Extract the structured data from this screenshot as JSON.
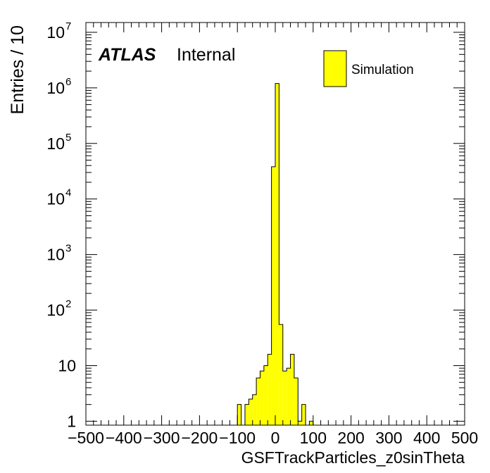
{
  "chart_data": {
    "type": "bar",
    "title": "",
    "xlabel": "GSFTrackParticles_z0sinTheta",
    "ylabel": "Entries / 10",
    "xlim": [
      -500,
      500
    ],
    "ylim": [
      0.85,
      15000000
    ],
    "yscale": "log",
    "bin_width": 10,
    "x_ticks": [
      "−500",
      "−400",
      "−300",
      "−200",
      "−100",
      "0",
      "100",
      "200",
      "300",
      "400",
      "500"
    ],
    "x_tick_values": [
      -500,
      -400,
      -300,
      -200,
      -100,
      0,
      100,
      200,
      300,
      400,
      500
    ],
    "y_ticks": [
      {
        "value": 1,
        "base": "1",
        "exp": ""
      },
      {
        "value": 10,
        "base": "10",
        "exp": ""
      },
      {
        "value": 100,
        "base": "10",
        "exp": "2"
      },
      {
        "value": 1000,
        "base": "10",
        "exp": "3"
      },
      {
        "value": 10000,
        "base": "10",
        "exp": "4"
      },
      {
        "value": 100000,
        "base": "10",
        "exp": "5"
      },
      {
        "value": 1000000,
        "base": "10",
        "exp": "6"
      },
      {
        "value": 10000000,
        "base": "10",
        "exp": "7"
      }
    ],
    "fill_color": "#ffff00",
    "series": [
      {
        "name": "Simulation",
        "bins": [
          {
            "x0": -100,
            "x1": -90,
            "value": 2
          },
          {
            "x0": -90,
            "x1": -80,
            "value": 0
          },
          {
            "x0": -80,
            "x1": -70,
            "value": 2
          },
          {
            "x0": -70,
            "x1": -60,
            "value": 2.5
          },
          {
            "x0": -60,
            "x1": -50,
            "value": 3
          },
          {
            "x0": -50,
            "x1": -40,
            "value": 6
          },
          {
            "x0": -40,
            "x1": -30,
            "value": 8
          },
          {
            "x0": -30,
            "x1": -20,
            "value": 10
          },
          {
            "x0": -20,
            "x1": -10,
            "value": 16
          },
          {
            "x0": -10,
            "x1": 0,
            "value": 38000
          },
          {
            "x0": 0,
            "x1": 10,
            "value": 1200000
          },
          {
            "x0": 10,
            "x1": 20,
            "value": 55
          },
          {
            "x0": 20,
            "x1": 30,
            "value": 8
          },
          {
            "x0": 30,
            "x1": 40,
            "value": 9
          },
          {
            "x0": 40,
            "x1": 50,
            "value": 16
          },
          {
            "x0": 50,
            "x1": 60,
            "value": 6
          },
          {
            "x0": 60,
            "x1": 70,
            "value": 1
          },
          {
            "x0": 70,
            "x1": 80,
            "value": 2
          },
          {
            "x0": 80,
            "x1": 90,
            "value": 0
          },
          {
            "x0": 90,
            "x1": 100,
            "value": 1
          }
        ]
      }
    ],
    "legend": {
      "placement": "top-right",
      "entries": [
        "Simulation"
      ]
    },
    "annotations": {
      "experiment": "ATLAS",
      "status": "Internal"
    }
  }
}
